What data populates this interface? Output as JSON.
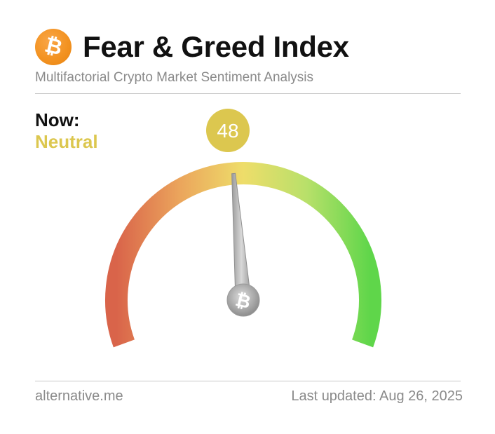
{
  "header": {
    "logo_glyph": "₿",
    "title": "Fear & Greed Index",
    "subtitle": "Multifactorial Crypto Market Sentiment Analysis"
  },
  "status": {
    "now_label": "Now:",
    "classification": "Neutral",
    "value": "48",
    "value_numeric": 48,
    "scale_min": 0,
    "scale_max": 100,
    "value_color": "#dcc74f"
  },
  "gauge": {
    "colors": [
      "#d9644a",
      "#eba55c",
      "#eedd6a",
      "#b8e06a",
      "#5fd64a"
    ],
    "center_icon": "bitcoin-icon",
    "center_glyph": "₿"
  },
  "footer": {
    "source": "alternative.me",
    "last_updated": "Last updated: Aug 26, 2025"
  }
}
